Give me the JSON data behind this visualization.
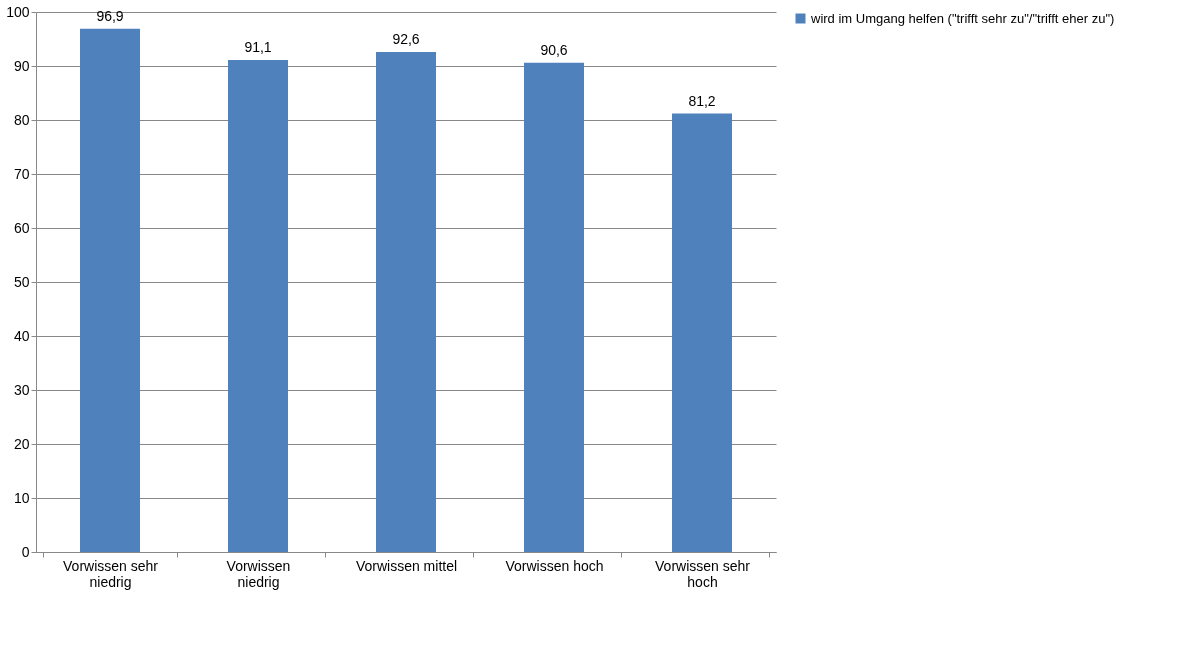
{
  "chart_data": {
    "type": "bar",
    "categories": [
      "Vorwissen sehr niedrig",
      "Vorwissen niedrig",
      "Vorwissen mittel",
      "Vorwissen hoch",
      "Vorwissen sehr hoch"
    ],
    "series": [
      {
        "name": "wird im Umgang helfen (\"trifft sehr zu\"/\"trifft eher zu\")",
        "color": "#4f81bd",
        "values": [
          96.9,
          91.1,
          92.6,
          90.6,
          81.2
        ],
        "value_labels": [
          "96,9",
          "91,1",
          "92,6",
          "90,6",
          "81,2"
        ]
      }
    ],
    "ylim": [
      0,
      100
    ],
    "yticks": [
      0,
      10,
      20,
      30,
      40,
      50,
      60,
      70,
      80,
      90,
      100
    ],
    "grid": "y",
    "legend": "right"
  }
}
